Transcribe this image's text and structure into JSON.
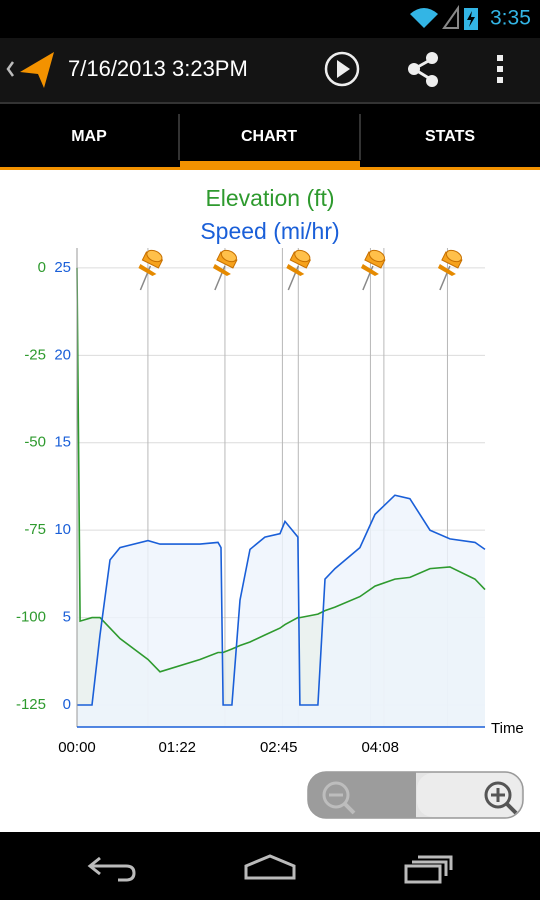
{
  "status_bar": {
    "time": "3:35"
  },
  "action_bar": {
    "title": "7/16/2013 3:23PM"
  },
  "tabs": [
    "MAP",
    "CHART",
    "STATS"
  ],
  "chart_data": {
    "type": "line",
    "title": "Elevation (ft)",
    "subtitle": "Speed (mi/hr)",
    "x_label": "Time",
    "x": [
      0,
      2.5,
      12.3,
      18.8,
      27,
      35.2,
      58.1,
      67.9,
      100.6,
      115.3,
      117.8,
      119.5,
      126.7,
      133.3,
      141.5,
      153.7,
      166,
      170.1,
      180.7,
      182.3,
      197,
      202.8,
      211,
      231.4,
      243.7,
      260,
      272.3,
      288.7,
      305,
      325.5,
      333.7
    ],
    "xlim": [
      0,
      333.7
    ],
    "xticks": [
      {
        "value": 0,
        "label": "00:00"
      },
      {
        "value": 82,
        "label": "01:22"
      },
      {
        "value": 165,
        "label": "02:45"
      },
      {
        "value": 248,
        "label": "04:08"
      }
    ],
    "ylim": [
      -131.3,
      5.7
    ],
    "yticks": [
      0,
      -25,
      -50,
      -75,
      -100,
      -125
    ],
    "y2lim": [
      -1.26,
      26.14
    ],
    "y2ticks": [
      0,
      5,
      10,
      15,
      20,
      25
    ],
    "grid": true,
    "series": [
      {
        "name": "Elevation (ft)",
        "color": "#2e9a2e",
        "fill": "#e6efec",
        "values": [
          0,
          -101,
          -100,
          -100,
          -103,
          -106,
          -112,
          -115.5,
          -112,
          -110,
          -110,
          -110,
          -109,
          -108,
          -107,
          -105,
          -103,
          -102,
          -100,
          -100,
          -99,
          -98,
          -97,
          -94,
          -91,
          -89,
          -88.5,
          -86,
          -85.5,
          -89,
          -92
        ]
      },
      {
        "name": "Speed (mi/hr)",
        "color": "#1a5fd8",
        "fill": "#eef4fc",
        "axis": "y2",
        "values": [
          0,
          0,
          0,
          4,
          8.3,
          9,
          9.4,
          9.2,
          9.2,
          9.3,
          9,
          0,
          0,
          6,
          8.9,
          9.6,
          9.8,
          10.5,
          9.6,
          0,
          0,
          7.2,
          7.8,
          9,
          10.9,
          12,
          11.8,
          10,
          9.5,
          9.3,
          8.9
        ]
      }
    ],
    "marker_lines": [
      58,
      121,
      168,
      181,
      240,
      251,
      303
    ],
    "pins": [
      60,
      121,
      181,
      242,
      305
    ]
  }
}
